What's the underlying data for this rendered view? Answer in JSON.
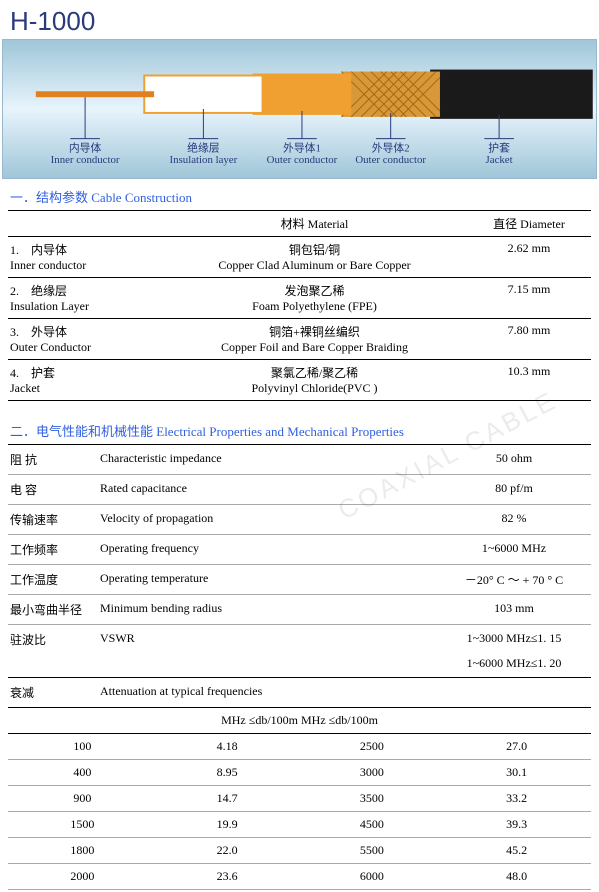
{
  "title": "H-1000",
  "watermark": "COAXIAL CABLE",
  "diagram": {
    "background_top": "#9fc6d8",
    "background_mid": "#e8f4fc",
    "conductor_color": "#e08020",
    "insulation_color": "#ffffff",
    "outer1_color": "#f0a030",
    "outer2_pattern": "#c07818",
    "jacket_color": "#1a1a1a",
    "label_color": "#2a3a7a",
    "labels": [
      {
        "cn": "内导体",
        "en": "Inner conductor"
      },
      {
        "cn": "绝缘层",
        "en": "Insulation layer"
      },
      {
        "cn": "外导体1",
        "en": "Outer conductor"
      },
      {
        "cn": "外导体2",
        "en": "Outer conductor"
      },
      {
        "cn": "护套",
        "en": "Jacket"
      }
    ]
  },
  "section1": {
    "title": "一．结构参数 Cable Construction",
    "header": {
      "c2": "材料 Material",
      "c3": "直径 Diameter"
    },
    "rows": [
      {
        "num": "1.",
        "cn": "内导体",
        "en": "Inner conductor",
        "mat_cn": "铜包铝/铜",
        "mat_en": "Copper Clad Aluminum or Bare Copper",
        "dia": "2.62 mm"
      },
      {
        "num": "2.",
        "cn": "绝缘层",
        "en": "Insulation Layer",
        "mat_cn": "发泡聚乙稀",
        "mat_en": "Foam Polyethylene (FPE)",
        "dia": "7.15 mm"
      },
      {
        "num": "3.",
        "cn": "外导体",
        "en": "Outer Conductor",
        "mat_cn": "铜箔+裸铜丝编织",
        "mat_en": "Copper Foil and Bare Copper Braiding",
        "dia": "7.80 mm"
      },
      {
        "num": "4.",
        "cn": "护套",
        "en": "Jacket",
        "mat_cn": "聚氯乙稀/聚乙稀",
        "mat_en": "Polyvinyl Chloride(PVC )",
        "dia": "10.3 mm"
      }
    ]
  },
  "section2": {
    "title": "二．电气性能和机械性能 Electrical Properties and Mechanical Properties",
    "rows": [
      {
        "cn": "阻 抗",
        "en": "Characteristic impedance",
        "val": "50 ohm"
      },
      {
        "cn": "电 容",
        "en": "Rated capacitance",
        "val": "80 pf/m"
      },
      {
        "cn": "传输速率",
        "en": "Velocity of propagation",
        "val": "82 %"
      },
      {
        "cn": "工作频率",
        "en": "Operating frequency",
        "val": "1~6000 MHz"
      },
      {
        "cn": "工作温度",
        "en": "Operating temperature",
        "val": "－20° C ～ + 70 ° C"
      },
      {
        "cn": "最小弯曲半径",
        "en": "Minimum bending radius",
        "val": "103 mm"
      },
      {
        "cn": "驻波比",
        "en": "VSWR",
        "val": "1~3000 MHz≤1. 15"
      },
      {
        "cn": "",
        "en": "",
        "val": "1~6000 MHz≤1. 20"
      }
    ],
    "attenuation": {
      "label_cn": "衰减",
      "label_en": "Attenuation at typical frequencies",
      "header": [
        "MHz",
        "≤db/100m",
        "MHz",
        "≤db/100m"
      ],
      "rows": [
        [
          "100",
          "4.18",
          "2500",
          "27.0"
        ],
        [
          "400",
          "8.95",
          "3000",
          "30.1"
        ],
        [
          "900",
          "14.7",
          "3500",
          "33.2"
        ],
        [
          "1500",
          "19.9",
          "4500",
          "39.3"
        ],
        [
          "1800",
          "22.0",
          "5500",
          "45.2"
        ],
        [
          "2000",
          "23.6",
          "6000",
          "48.0"
        ]
      ]
    }
  }
}
